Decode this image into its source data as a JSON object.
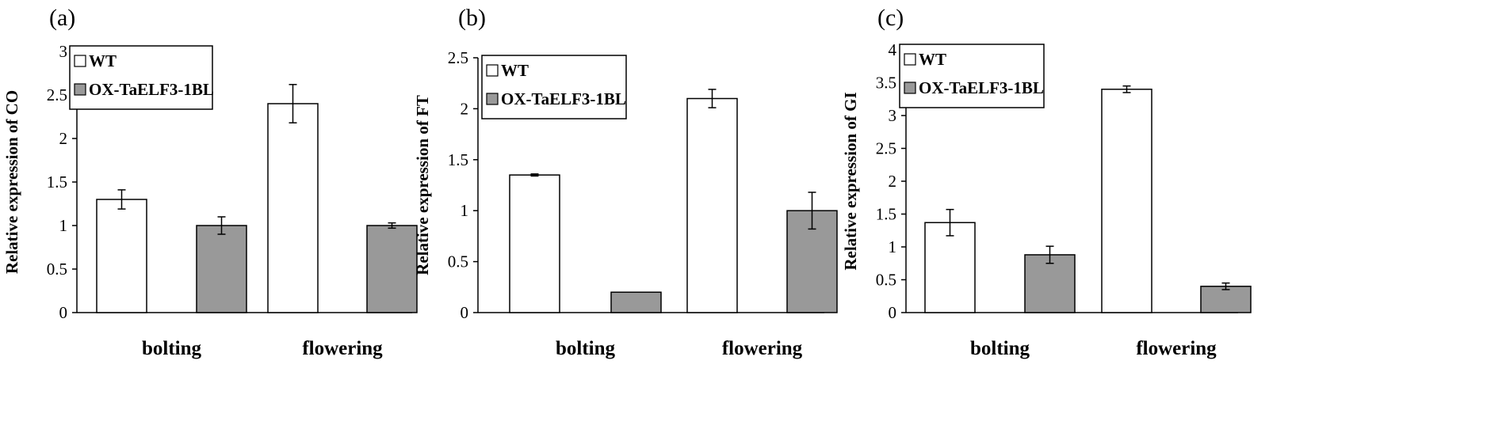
{
  "chart_data": [
    {
      "type": "bar",
      "panel_label": "(a)",
      "categories": [
        "bolting",
        "flowering"
      ],
      "series": [
        {
          "name": "WT",
          "color": "#ffffff",
          "values": [
            1.3,
            2.4
          ],
          "errors": [
            0.11,
            0.22
          ]
        },
        {
          "name": "OX-TaELF3-1BL",
          "color": "#999999",
          "values": [
            1.0,
            1.0
          ],
          "errors": [
            0.1,
            0.03
          ]
        }
      ],
      "ylabel": "Relative expression of CO",
      "ylim": [
        0,
        3
      ],
      "yticks": [
        "0",
        "0.5",
        "1",
        "1.5",
        "2",
        "2.5",
        "3"
      ],
      "legend_position": "top-left",
      "grid": false
    },
    {
      "type": "bar",
      "panel_label": "(b)",
      "categories": [
        "bolting",
        "flowering"
      ],
      "series": [
        {
          "name": "WT",
          "color": "#ffffff",
          "values": [
            1.35,
            2.1
          ],
          "errors": [
            0.01,
            0.09
          ]
        },
        {
          "name": "OX-TaELF3-1BL",
          "color": "#999999",
          "values": [
            0.2,
            1.0
          ],
          "errors": [
            0.0,
            0.18
          ]
        }
      ],
      "ylabel": "Relative expression of FT",
      "ylim": [
        0,
        2.5
      ],
      "yticks": [
        "0",
        "0.5",
        "1",
        "1.5",
        "2",
        "2.5"
      ],
      "legend_position": "top-left",
      "grid": false
    },
    {
      "type": "bar",
      "panel_label": "(c)",
      "categories": [
        "bolting",
        "flowering"
      ],
      "series": [
        {
          "name": "WT",
          "color": "#ffffff",
          "values": [
            1.37,
            3.4
          ],
          "errors": [
            0.2,
            0.05
          ]
        },
        {
          "name": "OX-TaELF3-1BL",
          "color": "#999999",
          "values": [
            0.88,
            0.4
          ],
          "errors": [
            0.13,
            0.05
          ]
        }
      ],
      "ylabel": "Relative expression of GI",
      "ylim": [
        0,
        4
      ],
      "yticks": [
        "0",
        "0.5",
        "1",
        "1.5",
        "2",
        "2.5",
        "3",
        "3.5",
        "4"
      ],
      "legend_position": "top-left",
      "grid": false
    }
  ]
}
